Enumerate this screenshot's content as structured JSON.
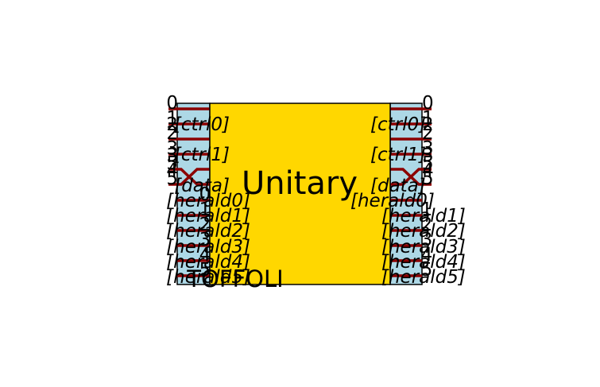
{
  "diagram": {
    "title": "Unitary",
    "subtitle": "TOFFOLI",
    "colors": {
      "main_box": "#FFD700",
      "side_box": "#ADD8E6",
      "wire": "#8B0000",
      "outline": "#000000"
    },
    "left_numbers": [
      "0",
      "1",
      "2",
      "3",
      "4",
      "5"
    ],
    "right_numbers": [
      "0",
      "1",
      "2",
      "3",
      "4",
      "5"
    ],
    "extra_left_numbers": [
      "2",
      "3",
      "5"
    ],
    "extra_right_numbers": [
      "2",
      "3",
      "5"
    ],
    "left_labels": [
      "[ctrl0]",
      "[ctrl1]",
      "[data]",
      "[herald0]",
      "[herald1]",
      "[herald2]",
      "[herald3]",
      "[herald4]",
      "[herald5]"
    ],
    "right_labels": [
      "[ctrl0]",
      "[ctrl1]",
      "[data]",
      "[herald0]",
      "[herald1]",
      "[herald2]",
      "[herald3]",
      "[herald4]",
      "[herald5]"
    ],
    "left_overlay_numbers": [
      "0",
      "1",
      "2",
      "3",
      "4",
      "5"
    ],
    "right_overlay_numbers": [
      "1",
      "2",
      "3",
      "4",
      "5"
    ]
  }
}
